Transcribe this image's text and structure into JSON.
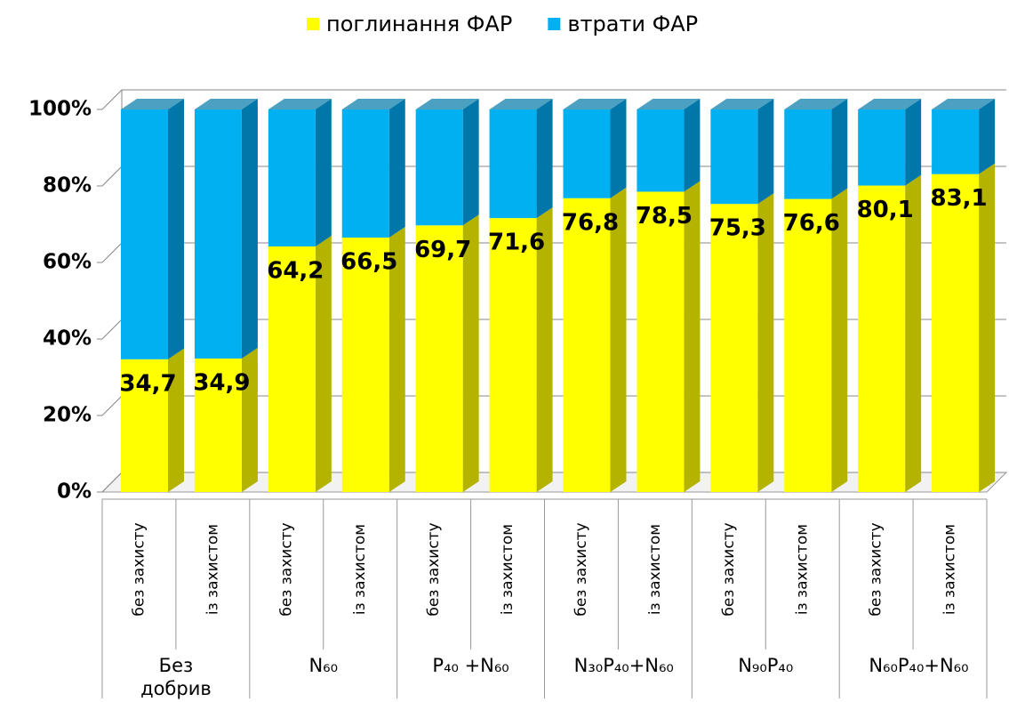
{
  "chart_data": {
    "type": "bar3d_stacked_percent",
    "categories": [
      "без захисту",
      "із захистом",
      "без захисту",
      "із захистом",
      "без захисту",
      "із захистом",
      "без захисту",
      "із захистом",
      "без захисту",
      "із захистом",
      "без захисту",
      "із захистом"
    ],
    "groups": [
      {
        "label": "Без добрив",
        "span": 2
      },
      {
        "label": "N₆₀",
        "span": 2
      },
      {
        "label": "P₄₀ +N₆₀",
        "span": 2
      },
      {
        "label": "N₃₀P₄₀+N₆₀",
        "span": 2
      },
      {
        "label": "N₉₀P₄₀",
        "span": 2
      },
      {
        "label": "N₆₀P₄₀+N₆₀",
        "span": 2
      }
    ],
    "series": [
      {
        "name": "поглинання ФАР",
        "color": "#ffff00",
        "side_color": "#b3b300",
        "values": [
          34.7,
          34.9,
          64.2,
          66.5,
          69.7,
          71.6,
          76.8,
          78.5,
          75.3,
          76.6,
          80.1,
          83.1
        ],
        "value_labels": [
          "34,7",
          "34,9",
          "64,2",
          "66,5",
          "69,7",
          "71,6",
          "76,8",
          "78,5",
          "75,3",
          "76,6",
          "80,1",
          "83,1"
        ]
      },
      {
        "name": "втрати ФАР",
        "color": "#00b0f0",
        "side_color": "#0077a8",
        "values": [
          65.3,
          65.1,
          35.8,
          33.5,
          30.3,
          28.4,
          23.2,
          21.5,
          24.7,
          23.4,
          19.9,
          16.9
        ]
      }
    ],
    "ylim": [
      0,
      100
    ],
    "yticks": [
      {
        "value": 0,
        "label": "0%"
      },
      {
        "value": 20,
        "label": "20%"
      },
      {
        "value": 40,
        "label": "40%"
      },
      {
        "value": 60,
        "label": "60%"
      },
      {
        "value": 80,
        "label": "80%"
      },
      {
        "value": 100,
        "label": "100%"
      }
    ],
    "grid": true,
    "legend": "top"
  }
}
